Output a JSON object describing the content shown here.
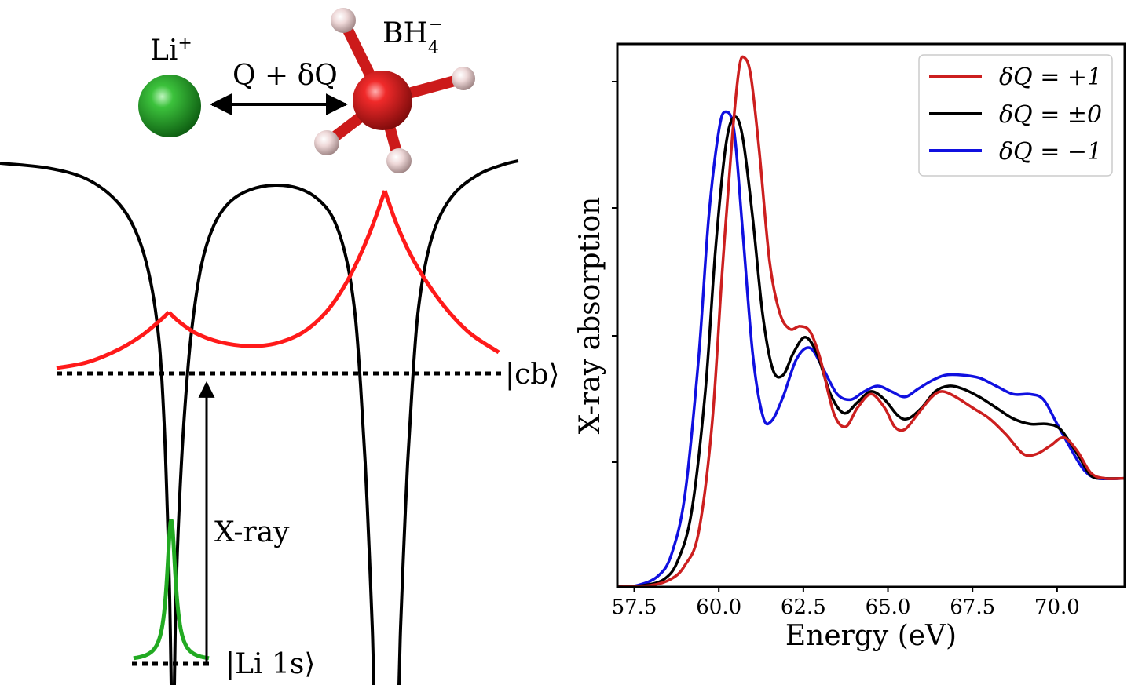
{
  "diagram": {
    "li_label": "Li",
    "li_sup": "+",
    "bh_label": "BH",
    "bh_sub": "4",
    "bh_sup": "−",
    "charge_label": "Q + δQ",
    "cb_label": "|cb⟩",
    "xray_label": "X-ray",
    "li1s_label": "|Li 1s⟩",
    "colors": {
      "li_atom": "#1f9e2a",
      "b_atom": "#e02424",
      "h_atom": "#e8c8c8",
      "potential": "#000000",
      "cb_wavefunction": "#ff1a1a",
      "core_orbital": "#22aa22"
    }
  },
  "chart_data": {
    "type": "line",
    "title": "",
    "xlabel": "Energy (eV)",
    "ylabel": "X-ray absorption",
    "xlim": [
      57.0,
      72.0
    ],
    "ylim": [
      0,
      1.0
    ],
    "xticks": [
      "57.5",
      "60.0",
      "62.5",
      "65.0",
      "67.5",
      "70.0"
    ],
    "xtick_values": [
      57.5,
      60.0,
      62.5,
      65.0,
      67.5,
      70.0
    ],
    "yticks_shown": false,
    "grid": false,
    "legend_position": "top-right",
    "series": [
      {
        "name": "δQ = +1",
        "color": "#cc1f1f",
        "points": [
          [
            57.0,
            0.0
          ],
          [
            58.0,
            0.003
          ],
          [
            58.6,
            0.015
          ],
          [
            59.0,
            0.04
          ],
          [
            59.4,
            0.1
          ],
          [
            59.8,
            0.3
          ],
          [
            60.1,
            0.58
          ],
          [
            60.4,
            0.83
          ],
          [
            60.6,
            0.955
          ],
          [
            60.75,
            0.975
          ],
          [
            60.95,
            0.94
          ],
          [
            61.2,
            0.8
          ],
          [
            61.5,
            0.6
          ],
          [
            61.8,
            0.505
          ],
          [
            62.1,
            0.475
          ],
          [
            62.4,
            0.48
          ],
          [
            62.7,
            0.47
          ],
          [
            63.0,
            0.42
          ],
          [
            63.4,
            0.32
          ],
          [
            63.75,
            0.295
          ],
          [
            64.1,
            0.33
          ],
          [
            64.5,
            0.355
          ],
          [
            64.9,
            0.33
          ],
          [
            65.2,
            0.295
          ],
          [
            65.5,
            0.29
          ],
          [
            65.9,
            0.32
          ],
          [
            66.3,
            0.35
          ],
          [
            66.6,
            0.36
          ],
          [
            67.0,
            0.35
          ],
          [
            67.5,
            0.33
          ],
          [
            68.0,
            0.31
          ],
          [
            68.5,
            0.28
          ],
          [
            69.0,
            0.245
          ],
          [
            69.4,
            0.245
          ],
          [
            69.8,
            0.26
          ],
          [
            70.2,
            0.275
          ],
          [
            70.6,
            0.25
          ],
          [
            71.0,
            0.21
          ],
          [
            71.4,
            0.2
          ],
          [
            72.0,
            0.2
          ]
        ]
      },
      {
        "name": "δQ = ±0",
        "color": "#000000",
        "points": [
          [
            57.0,
            0.0
          ],
          [
            57.8,
            0.003
          ],
          [
            58.4,
            0.015
          ],
          [
            58.8,
            0.05
          ],
          [
            59.2,
            0.14
          ],
          [
            59.6,
            0.36
          ],
          [
            59.9,
            0.62
          ],
          [
            60.2,
            0.81
          ],
          [
            60.45,
            0.865
          ],
          [
            60.7,
            0.83
          ],
          [
            61.0,
            0.68
          ],
          [
            61.3,
            0.5
          ],
          [
            61.6,
            0.4
          ],
          [
            61.9,
            0.39
          ],
          [
            62.2,
            0.43
          ],
          [
            62.55,
            0.46
          ],
          [
            62.9,
            0.43
          ],
          [
            63.3,
            0.355
          ],
          [
            63.7,
            0.32
          ],
          [
            64.1,
            0.34
          ],
          [
            64.5,
            0.36
          ],
          [
            64.9,
            0.345
          ],
          [
            65.3,
            0.315
          ],
          [
            65.6,
            0.31
          ],
          [
            66.0,
            0.33
          ],
          [
            66.4,
            0.36
          ],
          [
            66.8,
            0.37
          ],
          [
            67.2,
            0.365
          ],
          [
            67.7,
            0.35
          ],
          [
            68.2,
            0.33
          ],
          [
            68.7,
            0.31
          ],
          [
            69.2,
            0.3
          ],
          [
            69.7,
            0.3
          ],
          [
            70.1,
            0.29
          ],
          [
            70.6,
            0.245
          ],
          [
            71.0,
            0.205
          ],
          [
            71.4,
            0.2
          ],
          [
            72.0,
            0.2
          ]
        ]
      },
      {
        "name": "δQ = −1",
        "color": "#1010e0",
        "points": [
          [
            57.0,
            0.0
          ],
          [
            57.6,
            0.003
          ],
          [
            58.2,
            0.02
          ],
          [
            58.6,
            0.06
          ],
          [
            59.0,
            0.17
          ],
          [
            59.4,
            0.42
          ],
          [
            59.7,
            0.68
          ],
          [
            60.0,
            0.84
          ],
          [
            60.2,
            0.875
          ],
          [
            60.45,
            0.84
          ],
          [
            60.7,
            0.66
          ],
          [
            61.0,
            0.43
          ],
          [
            61.3,
            0.315
          ],
          [
            61.55,
            0.305
          ],
          [
            61.9,
            0.35
          ],
          [
            62.3,
            0.42
          ],
          [
            62.7,
            0.44
          ],
          [
            63.1,
            0.4
          ],
          [
            63.5,
            0.355
          ],
          [
            63.9,
            0.345
          ],
          [
            64.3,
            0.36
          ],
          [
            64.7,
            0.37
          ],
          [
            65.1,
            0.36
          ],
          [
            65.5,
            0.35
          ],
          [
            65.9,
            0.365
          ],
          [
            66.3,
            0.38
          ],
          [
            66.7,
            0.39
          ],
          [
            67.2,
            0.39
          ],
          [
            67.7,
            0.385
          ],
          [
            68.2,
            0.37
          ],
          [
            68.7,
            0.355
          ],
          [
            69.2,
            0.355
          ],
          [
            69.6,
            0.345
          ],
          [
            70.0,
            0.3
          ],
          [
            70.4,
            0.255
          ],
          [
            70.8,
            0.215
          ],
          [
            71.2,
            0.2
          ],
          [
            72.0,
            0.2
          ]
        ]
      }
    ]
  }
}
